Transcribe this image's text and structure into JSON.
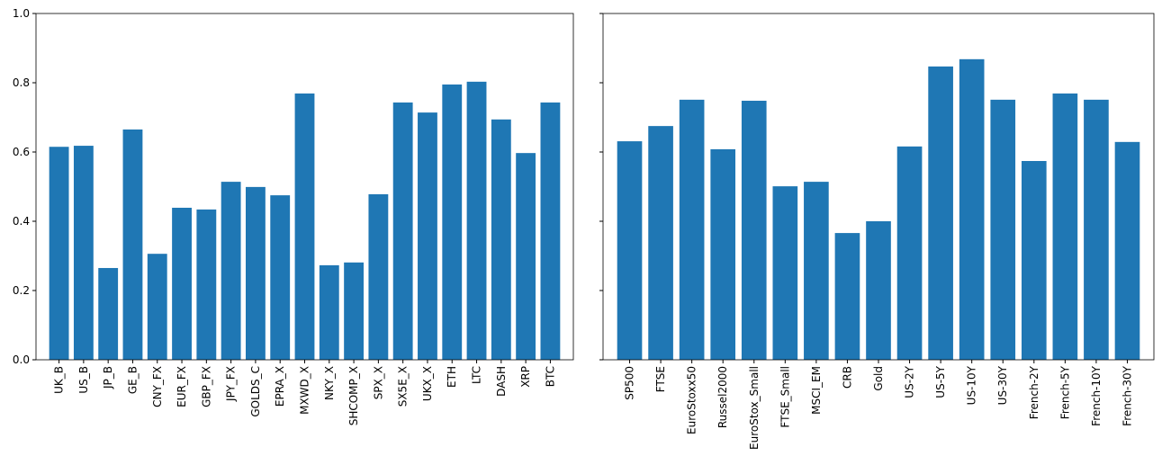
{
  "chart_data": [
    {
      "type": "bar",
      "color": "#1f77b4",
      "categories": [
        "UK_B",
        "US_B",
        "JP_B",
        "GE_B",
        "CNY_FX",
        "EUR_FX",
        "GBP_FX",
        "JPY_FX",
        "GOLDS_C",
        "EPRA_X",
        "MXWD_X",
        "NKY_X",
        "SHCOMP_X",
        "SPX_X",
        "SX5E_X",
        "UKX_X",
        "ETH",
        "LTC",
        "DASH",
        "XRP",
        "BTC"
      ],
      "values": [
        0.615,
        0.618,
        0.265,
        0.665,
        0.306,
        0.439,
        0.434,
        0.514,
        0.499,
        0.475,
        0.769,
        0.273,
        0.281,
        0.478,
        0.743,
        0.714,
        0.795,
        0.803,
        0.694,
        0.597,
        0.743
      ],
      "ylim": [
        0,
        1
      ],
      "yticks": [
        {
          "value": 0,
          "label": "0.0"
        },
        {
          "value": 0.2,
          "label": "0.2"
        },
        {
          "value": 0.4,
          "label": "0.4"
        },
        {
          "value": 0.6,
          "label": "0.6"
        },
        {
          "value": 0.8,
          "label": "0.8"
        },
        {
          "value": 1,
          "label": "1.0"
        }
      ],
      "ytick_labels": true
    },
    {
      "type": "bar",
      "color": "#1f77b4",
      "categories": [
        "SP500",
        "FTSE",
        "EuroStoxx50",
        "Russel2000",
        "EuroStox_Small",
        "FTSE_Small",
        "MSCI_EM",
        "CRB",
        "Gold",
        "US-2Y",
        "US-5Y",
        "US-10Y",
        "US-30Y",
        "French-2Y",
        "French-5Y",
        "French-10Y",
        "French-30Y"
      ],
      "values": [
        0.631,
        0.675,
        0.751,
        0.608,
        0.748,
        0.501,
        0.514,
        0.366,
        0.4,
        0.616,
        0.847,
        0.868,
        0.751,
        0.574,
        0.769,
        0.751,
        0.629
      ],
      "ylim": [
        0,
        1
      ],
      "yticks": [
        0,
        0.2,
        0.4,
        0.6,
        0.8,
        1
      ],
      "ytick_labels": false
    }
  ]
}
